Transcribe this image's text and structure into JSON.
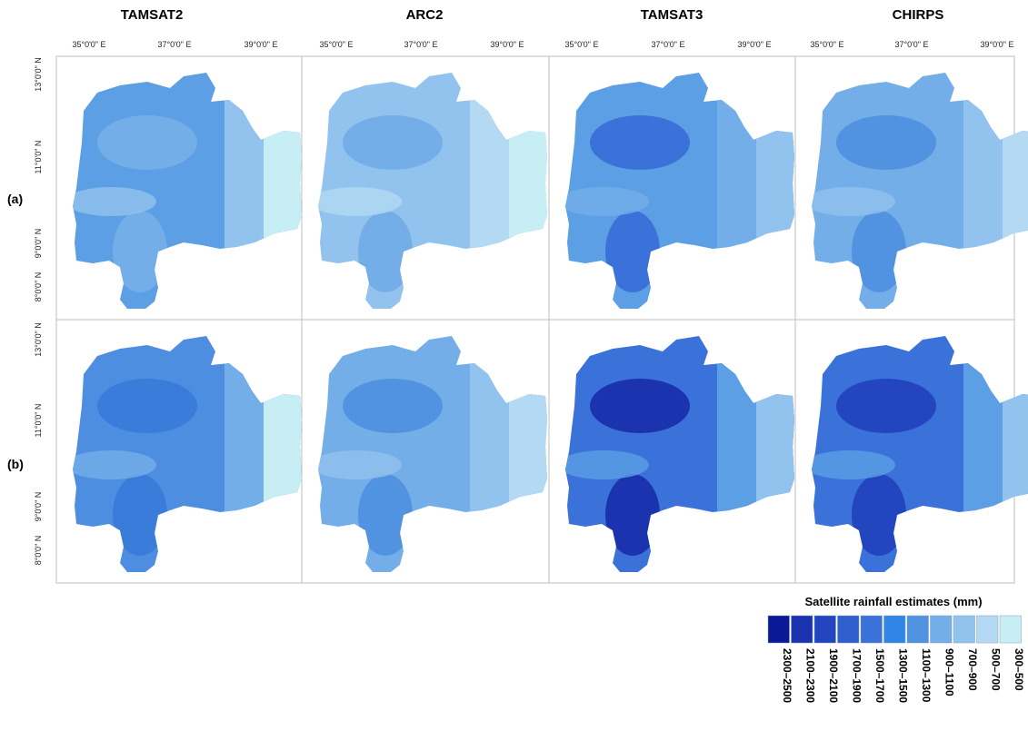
{
  "columns": [
    "TAMSAT2",
    "ARC2",
    "TAMSAT3",
    "CHIRPS"
  ],
  "rows": [
    "(a)",
    "(b)"
  ],
  "lon_ticks": [
    "35°0'0\" E",
    "37°0'0\" E",
    "39°0'0\" E"
  ],
  "lat_ticks": [
    "13°0'0\" N",
    "11°0'0\" N",
    "9°0'0\" N",
    "8°0'0\" N"
  ],
  "legend": {
    "title": "Satellite rainfall estimates (mm)",
    "classes": [
      {
        "label": "2300–2500",
        "color": "#0a1a96"
      },
      {
        "label": "2100–2300",
        "color": "#1c33b0"
      },
      {
        "label": "1900–2100",
        "color": "#2445c0"
      },
      {
        "label": "1700–1900",
        "color": "#2f5fcf"
      },
      {
        "label": "1500–1700",
        "color": "#3a72da"
      },
      {
        "label": "1300–1500",
        "color": "#2f86e6"
      },
      {
        "label": "1100–1300",
        "color": "#5193e0"
      },
      {
        "label": "900–1100",
        "color": "#74aee8"
      },
      {
        "label": "700–900",
        "color": "#92c2ee"
      },
      {
        "label": "500–700",
        "color": "#b3d9f3"
      },
      {
        "label": "300–500",
        "color": "#c7eef4"
      }
    ]
  },
  "panel_colors": {
    "a": {
      "TAMSAT2": [
        "#5d9fe4",
        "#73aee8",
        "#92c2ee",
        "#c7eef4"
      ],
      "ARC2": [
        "#92c2ee",
        "#74aee8",
        "#b3d9f3",
        "#c7eef4"
      ],
      "TAMSAT3": [
        "#5d9fe4",
        "#3a72da",
        "#74aee8",
        "#92c2ee"
      ],
      "CHIRPS": [
        "#74aee8",
        "#5193e0",
        "#92c2ee",
        "#b3d9f3"
      ]
    },
    "b": {
      "TAMSAT2": [
        "#4d8ee0",
        "#3a7cd9",
        "#74aee8",
        "#c7eef4"
      ],
      "ARC2": [
        "#74aee8",
        "#5193e0",
        "#92c2ee",
        "#b3d9f3"
      ],
      "TAMSAT3": [
        "#3a72da",
        "#1c33b0",
        "#5d9fe4",
        "#92c2ee"
      ],
      "CHIRPS": [
        "#3a72da",
        "#2445c0",
        "#5d9fe4",
        "#92c2ee"
      ]
    }
  }
}
